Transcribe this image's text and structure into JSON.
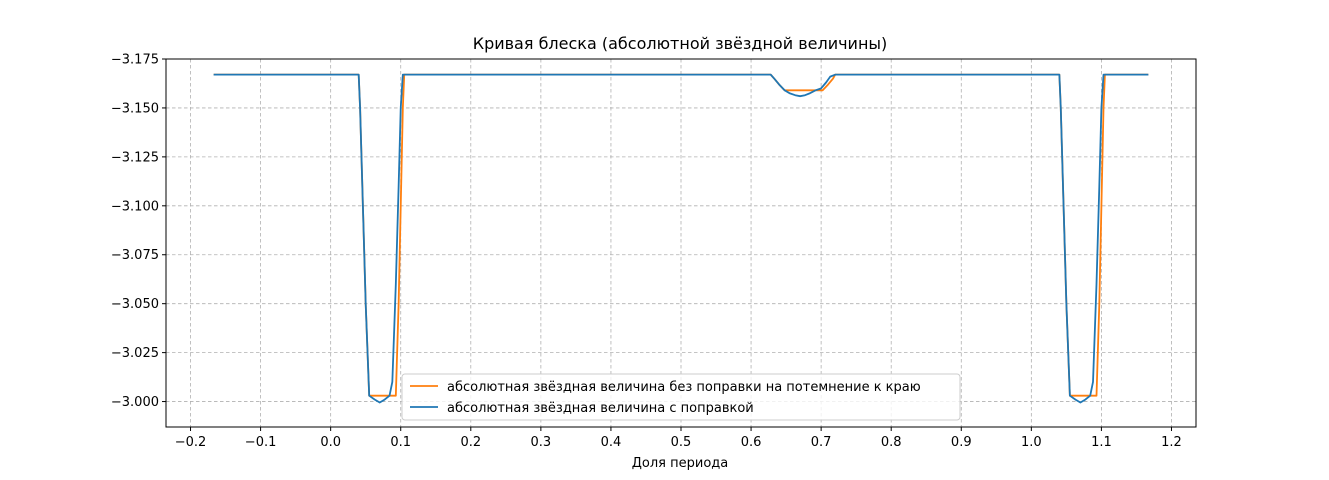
{
  "chart_data": {
    "type": "line",
    "title": "Кривая блеска (абсолютной звёздной величины)",
    "xlabel": "Доля периода",
    "ylabel": "",
    "xlim": [
      -0.235,
      1.235
    ],
    "ylim": [
      -2.987,
      -3.175
    ],
    "y_inverted": true,
    "grid": true,
    "legend_position": "bottom-center",
    "x_ticks": [
      -0.2,
      -0.1,
      0.0,
      0.1,
      0.2,
      0.3,
      0.4,
      0.5,
      0.6,
      0.7,
      0.8,
      0.9,
      1.0,
      1.1,
      1.2
    ],
    "x_tick_labels": [
      "−0.2",
      "−0.1",
      "0.0",
      "0.1",
      "0.2",
      "0.3",
      "0.4",
      "0.5",
      "0.6",
      "0.7",
      "0.8",
      "0.9",
      "1.0",
      "1.1",
      "1.2"
    ],
    "y_ticks": [
      -3.175,
      -3.15,
      -3.125,
      -3.1,
      -3.075,
      -3.05,
      -3.025,
      -3.0
    ],
    "y_tick_labels": [
      "−3.175",
      "−3.150",
      "−3.125",
      "−3.100",
      "−3.075",
      "−3.050",
      "−3.025",
      "−3.000"
    ],
    "series": [
      {
        "name": "абсолютная звёздная величина без поправки на потемнение к краю",
        "color": "#ff7f0e",
        "x": [
          -0.167,
          0.04,
          0.042,
          0.046,
          0.05,
          0.055,
          0.06,
          0.088,
          0.093,
          0.097,
          0.1,
          0.103,
          0.105,
          0.628,
          0.633,
          0.64,
          0.648,
          0.655,
          0.695,
          0.702,
          0.71,
          0.717,
          0.72,
          1.04,
          1.042,
          1.046,
          1.05,
          1.055,
          1.06,
          1.088,
          1.093,
          1.097,
          1.1,
          1.103,
          1.105,
          1.167
        ],
        "y": [
          -3.167,
          -3.167,
          -3.15,
          -3.1,
          -3.05,
          -3.003,
          -3.003,
          -3.003,
          -3.003,
          -3.05,
          -3.1,
          -3.15,
          -3.167,
          -3.167,
          -3.165,
          -3.162,
          -3.159,
          -3.159,
          -3.159,
          -3.159,
          -3.162,
          -3.165,
          -3.167,
          -3.167,
          -3.15,
          -3.1,
          -3.05,
          -3.003,
          -3.003,
          -3.003,
          -3.003,
          -3.05,
          -3.1,
          -3.15,
          -3.167,
          -3.167
        ]
      },
      {
        "name": "абсолютная звёздная величина с поправкой",
        "color": "#1f77b4",
        "x": [
          -0.167,
          0.04,
          0.042,
          0.046,
          0.05,
          0.055,
          0.063,
          0.07,
          0.077,
          0.084,
          0.088,
          0.093,
          0.097,
          0.1,
          0.103,
          0.105,
          0.628,
          0.633,
          0.64,
          0.648,
          0.655,
          0.663,
          0.67,
          0.677,
          0.684,
          0.692,
          0.7,
          0.707,
          0.713,
          0.72,
          1.04,
          1.042,
          1.046,
          1.05,
          1.055,
          1.063,
          1.07,
          1.077,
          1.084,
          1.088,
          1.093,
          1.097,
          1.1,
          1.103,
          1.105,
          1.167
        ],
        "y": [
          -3.167,
          -3.167,
          -3.15,
          -3.1,
          -3.05,
          -3.003,
          -3.001,
          -2.9995,
          -3.001,
          -3.003,
          -3.01,
          -3.06,
          -3.11,
          -3.15,
          -3.167,
          -3.167,
          -3.167,
          -3.165,
          -3.162,
          -3.159,
          -3.1575,
          -3.1565,
          -3.156,
          -3.1565,
          -3.1575,
          -3.159,
          -3.16,
          -3.163,
          -3.166,
          -3.167,
          -3.167,
          -3.15,
          -3.1,
          -3.05,
          -3.003,
          -3.001,
          -2.9995,
          -3.001,
          -3.003,
          -3.01,
          -3.06,
          -3.11,
          -3.15,
          -3.167,
          -3.167,
          -3.167
        ]
      }
    ]
  }
}
